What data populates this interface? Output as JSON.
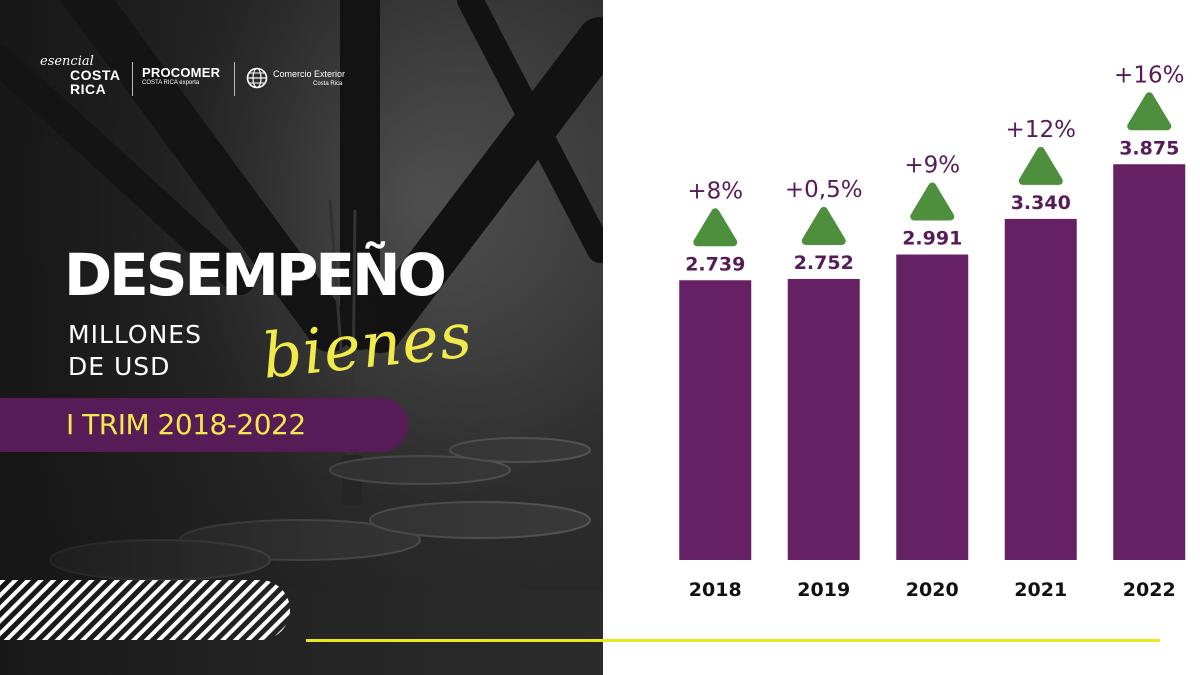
{
  "logos": {
    "esencial": {
      "script": "esencial",
      "line1": "COSTA",
      "line2": "RICA"
    },
    "procomer": {
      "name": "PROCOMER",
      "tagline": "COSTA RICA exporta"
    },
    "comex": {
      "name": "Comercio Exterior",
      "sub": "Costa Rica"
    }
  },
  "headline": "DESEMPEÑO",
  "subline": [
    "MILLONES",
    "DE USD"
  ],
  "category": "bienes",
  "period": "I TRIM 2018-2022",
  "colors": {
    "bar": "#662064",
    "growth_triangle": "#4d8f3d",
    "percent_text": "#571c58",
    "value_text": "#ffffff",
    "accent_yellow": "#f1ea4a",
    "period_bg": "#571c58"
  },
  "chart_data": {
    "type": "bar",
    "categories": [
      "2018",
      "2019",
      "2020",
      "2021",
      "2022"
    ],
    "values": [
      2739,
      2752,
      2991,
      3340,
      3875
    ],
    "value_labels": [
      "2.739",
      "2.752",
      "2.991",
      "3.340",
      "3.875"
    ],
    "growth_labels": [
      "+8%",
      "+0,5%",
      "+9%",
      "+12%",
      "+16%"
    ],
    "ylim": [
      0,
      4700
    ],
    "grid": false,
    "legend": "none"
  }
}
